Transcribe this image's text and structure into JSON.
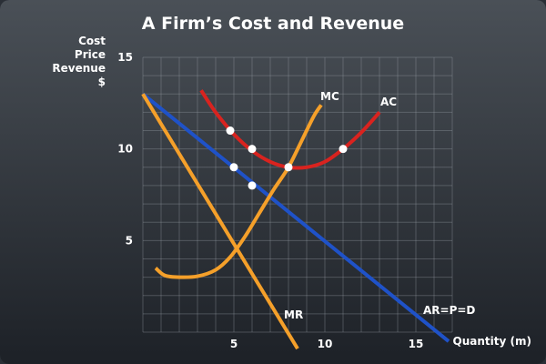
{
  "chart_data": {
    "type": "line",
    "title": "A Firm’s Cost and Revenue",
    "ylabel_lines": [
      "Cost",
      "Price",
      "Revenue",
      "$"
    ],
    "xlabel": "Quantity (m)",
    "xlim": [
      0,
      17
    ],
    "ylim": [
      0,
      15
    ],
    "x_ticks": [
      5,
      10,
      15
    ],
    "y_ticks": [
      5,
      10,
      15
    ],
    "grid": true,
    "series": [
      {
        "name": "AR=P=D",
        "color": "#1f52c8",
        "x": [
          0,
          16.8
        ],
        "y": [
          13,
          -0.5
        ]
      },
      {
        "name": "MR",
        "color": "#f5a02a",
        "x": [
          0,
          8.5
        ],
        "y": [
          13,
          -0.9
        ]
      },
      {
        "name": "MC",
        "color": "#f5a02a",
        "x": [
          0.7,
          1.2,
          2,
          3,
          4,
          4.8,
          5.6,
          6.4,
          7.2,
          8,
          8.8,
          9.4,
          9.8
        ],
        "y": [
          3.5,
          3.1,
          3.0,
          3.05,
          3.4,
          4.1,
          5.2,
          6.5,
          7.8,
          9.0,
          10.6,
          11.8,
          12.4
        ]
      },
      {
        "name": "AC",
        "color": "#d9231f",
        "x": [
          3.2,
          4,
          5,
          6,
          7,
          8,
          9,
          10,
          11,
          12,
          13
        ],
        "y": [
          13.2,
          12.0,
          10.8,
          9.9,
          9.3,
          9.0,
          9.0,
          9.3,
          10.0,
          10.9,
          12.0
        ]
      }
    ],
    "points": [
      {
        "x": 4.8,
        "y": 11.0
      },
      {
        "x": 6.0,
        "y": 10.0
      },
      {
        "x": 11.0,
        "y": 10.0
      },
      {
        "x": 5.0,
        "y": 9.0
      },
      {
        "x": 8.0,
        "y": 9.0
      },
      {
        "x": 6.0,
        "y": 8.0
      }
    ]
  }
}
